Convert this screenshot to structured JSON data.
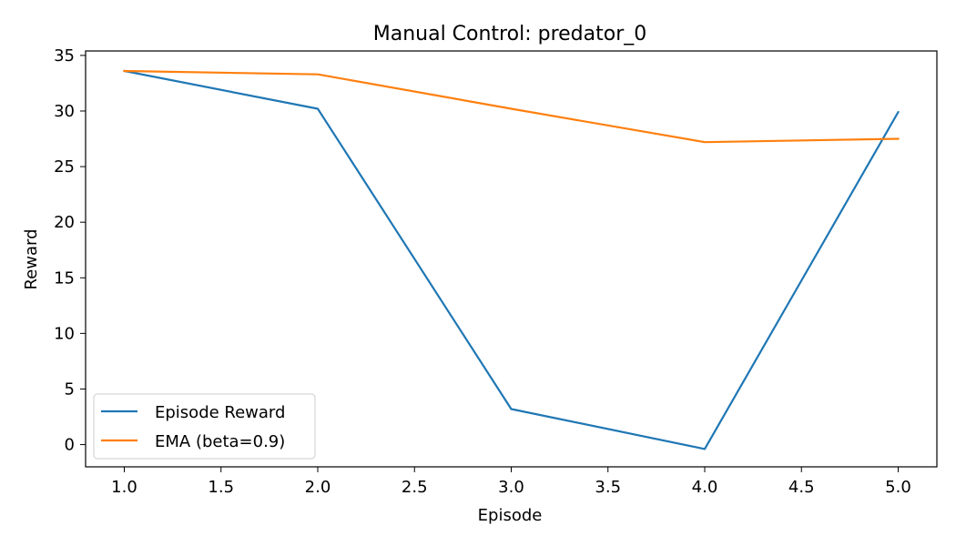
{
  "chart_data": {
    "type": "line",
    "title": "Manual Control: predator_0",
    "xlabel": "Episode",
    "ylabel": "Reward",
    "xlim": [
      0.8,
      5.2
    ],
    "ylim": [
      -2.0,
      35.4
    ],
    "x_ticks": [
      1.0,
      1.5,
      2.0,
      2.5,
      3.0,
      3.5,
      4.0,
      4.5,
      5.0
    ],
    "x_tick_labels": [
      "1.0",
      "1.5",
      "2.0",
      "2.5",
      "3.0",
      "3.5",
      "4.0",
      "4.5",
      "5.0"
    ],
    "y_ticks": [
      0,
      5,
      10,
      15,
      20,
      25,
      30,
      35
    ],
    "y_tick_labels": [
      "0",
      "5",
      "10",
      "15",
      "20",
      "25",
      "30",
      "35"
    ],
    "grid": false,
    "legend_position": "lower-left",
    "x": [
      1,
      2,
      3,
      4,
      5
    ],
    "series": [
      {
        "name": "Episode Reward",
        "color": "#1f77b4",
        "values": [
          33.6,
          30.2,
          3.2,
          -0.4,
          29.9
        ]
      },
      {
        "name": "EMA (beta=0.9)",
        "color": "#ff7f0e",
        "values": [
          33.6,
          33.3,
          30.2,
          27.2,
          27.5
        ]
      }
    ]
  }
}
